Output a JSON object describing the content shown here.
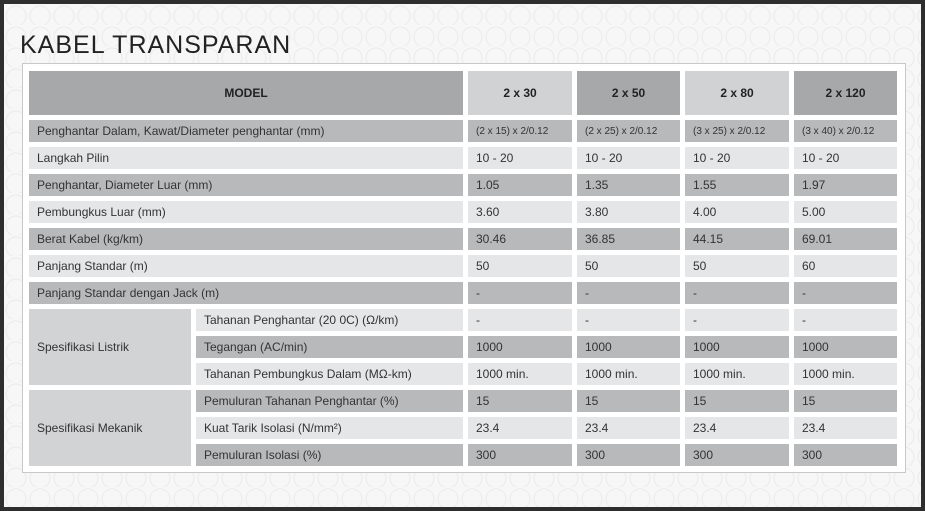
{
  "title": "KABEL TRANSPARAN",
  "header": {
    "model_label": "MODEL",
    "models": [
      "2 x 30",
      "2 x 50",
      "2 x 80",
      "2 x 120"
    ]
  },
  "colors": {
    "dark": "#b8b9bb",
    "light": "#e5e6e7",
    "header_dark": "#a7a8aa",
    "header_light": "#d1d2d4",
    "group": "#d2d3d5"
  },
  "rows": [
    {
      "label": "Penghantar Dalam, Kawat/Diameter penghantar (mm)",
      "values": [
        "(2 x 15) x 2/0.12",
        "(2 x 25) x 2/0.12",
        "(3 x 25) x 2/0.12",
        "(3 x 40) x 2/0.12"
      ]
    },
    {
      "label": "Langkah Pilin",
      "values": [
        "10 - 20",
        "10 - 20",
        "10 - 20",
        "10 - 20"
      ]
    },
    {
      "label": "Penghantar, Diameter Luar (mm)",
      "values": [
        "1.05",
        "1.35",
        "1.55",
        "1.97"
      ]
    },
    {
      "label": "Pembungkus Luar (mm)",
      "values": [
        "3.60",
        "3.80",
        "4.00",
        "5.00"
      ]
    },
    {
      "label": "Berat Kabel (kg/km)",
      "values": [
        "30.46",
        "36.85",
        "44.15",
        "69.01"
      ]
    },
    {
      "label": "Panjang Standar (m)",
      "values": [
        "50",
        "50",
        "50",
        "60"
      ]
    },
    {
      "label": "Panjang Standar dengan Jack (m)",
      "values": [
        "-",
        "-",
        "-",
        "-"
      ]
    },
    {
      "group": "Spesifikasi Listrik",
      "label": "Tahanan Penghantar (20 0C) (Ω/km)",
      "values": [
        "-",
        "-",
        "-",
        "-"
      ]
    },
    {
      "group": "Spesifikasi Listrik",
      "label": "Tegangan (AC/min)",
      "values": [
        "1000",
        "1000",
        "1000",
        "1000"
      ]
    },
    {
      "group": "Spesifikasi Listrik",
      "label": "Tahanan Pembungkus Dalam (MΩ-km)",
      "values": [
        "1000 min.",
        "1000 min.",
        "1000 min.",
        "1000 min."
      ]
    },
    {
      "group": "Spesifikasi Mekanik",
      "label": "Pemuluran Tahanan Penghantar (%)",
      "values": [
        "15",
        "15",
        "15",
        "15"
      ]
    },
    {
      "group": "Spesifikasi Mekanik",
      "label": "Kuat Tarik Isolasi (N/mm²)",
      "values": [
        "23.4",
        "23.4",
        "23.4",
        "23.4"
      ]
    },
    {
      "group": "Spesifikasi Mekanik",
      "label": "Pemuluran Isolasi (%)",
      "values": [
        "300",
        "300",
        "300",
        "300"
      ]
    }
  ]
}
